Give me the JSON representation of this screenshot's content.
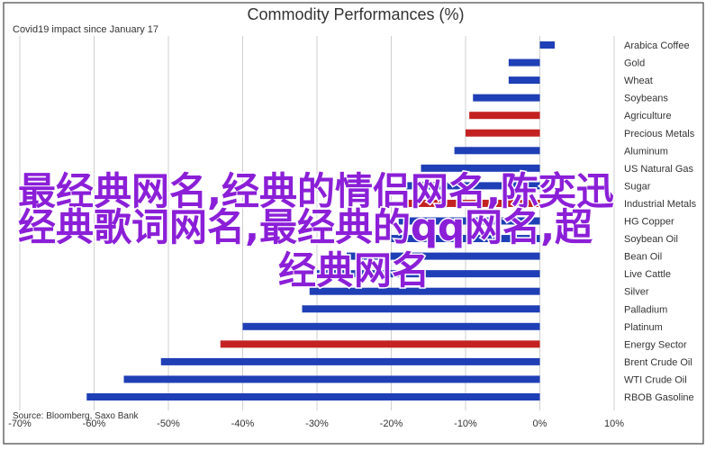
{
  "chart_data": {
    "type": "bar",
    "orientation": "horizontal",
    "title": "Commodity Performances (%)",
    "subtitle": "Covid19 impact since January 17",
    "source": "Source: Bloomberg, Saxo Bank",
    "xlim": [
      -70,
      10
    ],
    "xticks": [
      -70,
      -60,
      -50,
      -40,
      -30,
      -20,
      -10,
      0,
      10
    ],
    "xtick_labels": [
      "-70%",
      "-60%",
      "-50%",
      "-40%",
      "-30%",
      "-20%",
      "-10%",
      "0%",
      "10%"
    ],
    "grid": true,
    "categories": [
      "Arabica Coffee",
      "Gold",
      "Wheat",
      "Soybeans",
      "Agriculture",
      "Precious Metals",
      "Aluminum",
      "US Natural Gas",
      "Sugar",
      "Industrial Metals",
      "HG Copper",
      "Soybean Oil",
      "Bean Oil",
      "Live Cattle",
      "Silver",
      "Palladium",
      "Platinum",
      "Energy Sector",
      "Brent Crude Oil",
      "WTI Crude Oil",
      "RBOB Gasoline"
    ],
    "values": [
      2,
      -4.2,
      -4.2,
      -9,
      -9.5,
      -10,
      -11.5,
      -16,
      -18,
      -18.5,
      -19,
      -20,
      -26,
      -30,
      -31,
      -32,
      -40,
      -43,
      -51,
      -56,
      -61
    ],
    "colors": [
      "blue",
      "blue",
      "blue",
      "blue",
      "red",
      "red",
      "blue",
      "blue",
      "blue",
      "red",
      "blue",
      "blue",
      "blue",
      "blue",
      "blue",
      "blue",
      "blue",
      "red",
      "blue",
      "blue",
      "blue"
    ],
    "palette": {
      "blue": "#1f3fb6",
      "red": "#c42222"
    }
  },
  "watermark": {
    "lines": [
      "最经典网名,经典的情侣网名,陈奕迅",
      "经典歌词网名,最经典的qq网名,超",
      "经典网名"
    ],
    "color": "#8b1fd8"
  }
}
